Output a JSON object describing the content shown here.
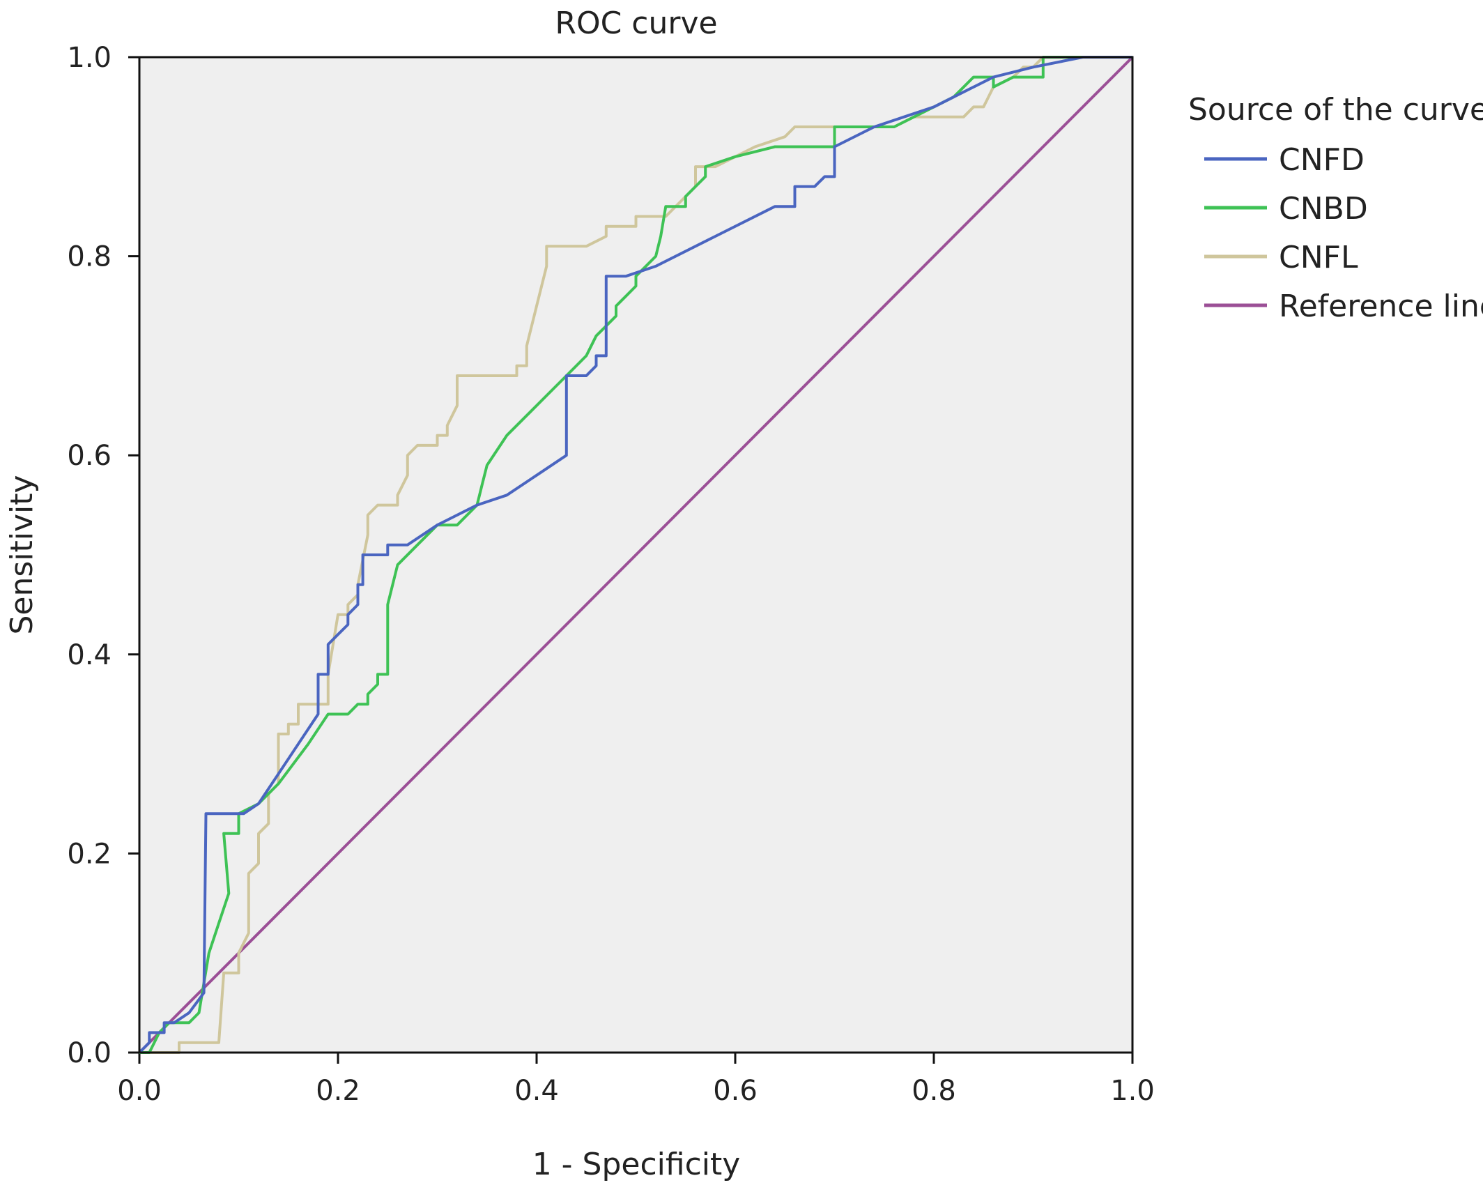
{
  "chart_data": {
    "type": "line",
    "title": "ROC curve",
    "xlabel": "1 - Specificity",
    "ylabel": "Sensitivity",
    "xlim": [
      0,
      1
    ],
    "ylim": [
      0,
      1
    ],
    "x_ticks": [
      "0.0",
      "0.2",
      "0.4",
      "0.6",
      "0.8",
      "1.0"
    ],
    "y_ticks": [
      "0.0",
      "0.2",
      "0.4",
      "0.6",
      "0.8",
      "1.0"
    ],
    "grid": false,
    "plot_background": "#efefef",
    "legend": {
      "title": "Source of the curve",
      "position": "right"
    },
    "series": [
      {
        "name": "CNFD",
        "color": "#4a65c0",
        "points": [
          [
            0,
            0
          ],
          [
            0.01,
            0.01
          ],
          [
            0.01,
            0.02
          ],
          [
            0.02,
            0.02
          ],
          [
            0.025,
            0.02
          ],
          [
            0.025,
            0.03
          ],
          [
            0.035,
            0.03
          ],
          [
            0.05,
            0.04
          ],
          [
            0.065,
            0.06
          ],
          [
            0.067,
            0.24
          ],
          [
            0.1,
            0.24
          ],
          [
            0.105,
            0.24
          ],
          [
            0.12,
            0.25
          ],
          [
            0.14,
            0.28
          ],
          [
            0.16,
            0.31
          ],
          [
            0.18,
            0.34
          ],
          [
            0.18,
            0.38
          ],
          [
            0.19,
            0.38
          ],
          [
            0.19,
            0.41
          ],
          [
            0.2,
            0.42
          ],
          [
            0.21,
            0.43
          ],
          [
            0.21,
            0.44
          ],
          [
            0.22,
            0.45
          ],
          [
            0.22,
            0.47
          ],
          [
            0.225,
            0.47
          ],
          [
            0.225,
            0.5
          ],
          [
            0.24,
            0.5
          ],
          [
            0.25,
            0.5
          ],
          [
            0.25,
            0.51
          ],
          [
            0.27,
            0.51
          ],
          [
            0.3,
            0.53
          ],
          [
            0.34,
            0.55
          ],
          [
            0.37,
            0.56
          ],
          [
            0.4,
            0.58
          ],
          [
            0.43,
            0.6
          ],
          [
            0.43,
            0.68
          ],
          [
            0.45,
            0.68
          ],
          [
            0.46,
            0.69
          ],
          [
            0.46,
            0.7
          ],
          [
            0.47,
            0.7
          ],
          [
            0.47,
            0.78
          ],
          [
            0.49,
            0.78
          ],
          [
            0.52,
            0.79
          ],
          [
            0.58,
            0.82
          ],
          [
            0.64,
            0.85
          ],
          [
            0.66,
            0.85
          ],
          [
            0.66,
            0.87
          ],
          [
            0.68,
            0.87
          ],
          [
            0.69,
            0.88
          ],
          [
            0.7,
            0.88
          ],
          [
            0.7,
            0.91
          ],
          [
            0.74,
            0.93
          ],
          [
            0.77,
            0.94
          ],
          [
            0.8,
            0.95
          ],
          [
            0.84,
            0.97
          ],
          [
            0.86,
            0.98
          ],
          [
            0.9,
            0.99
          ],
          [
            0.95,
            1.0
          ],
          [
            1,
            1
          ]
        ]
      },
      {
        "name": "CNBD",
        "color": "#3ec255",
        "points": [
          [
            0,
            0
          ],
          [
            0.01,
            0.0
          ],
          [
            0.02,
            0.02
          ],
          [
            0.03,
            0.03
          ],
          [
            0.05,
            0.03
          ],
          [
            0.06,
            0.04
          ],
          [
            0.07,
            0.1
          ],
          [
            0.08,
            0.13
          ],
          [
            0.09,
            0.16
          ],
          [
            0.085,
            0.22
          ],
          [
            0.1,
            0.22
          ],
          [
            0.1,
            0.24
          ],
          [
            0.12,
            0.25
          ],
          [
            0.14,
            0.27
          ],
          [
            0.17,
            0.31
          ],
          [
            0.19,
            0.34
          ],
          [
            0.21,
            0.34
          ],
          [
            0.22,
            0.35
          ],
          [
            0.23,
            0.35
          ],
          [
            0.23,
            0.36
          ],
          [
            0.24,
            0.37
          ],
          [
            0.24,
            0.38
          ],
          [
            0.25,
            0.38
          ],
          [
            0.25,
            0.45
          ],
          [
            0.26,
            0.49
          ],
          [
            0.28,
            0.51
          ],
          [
            0.3,
            0.53
          ],
          [
            0.32,
            0.53
          ],
          [
            0.34,
            0.55
          ],
          [
            0.345,
            0.57
          ],
          [
            0.35,
            0.59
          ],
          [
            0.37,
            0.62
          ],
          [
            0.39,
            0.64
          ],
          [
            0.41,
            0.66
          ],
          [
            0.43,
            0.68
          ],
          [
            0.45,
            0.7
          ],
          [
            0.46,
            0.72
          ],
          [
            0.47,
            0.73
          ],
          [
            0.48,
            0.74
          ],
          [
            0.48,
            0.75
          ],
          [
            0.49,
            0.76
          ],
          [
            0.5,
            0.77
          ],
          [
            0.5,
            0.78
          ],
          [
            0.51,
            0.79
          ],
          [
            0.52,
            0.8
          ],
          [
            0.525,
            0.82
          ],
          [
            0.53,
            0.85
          ],
          [
            0.55,
            0.85
          ],
          [
            0.55,
            0.86
          ],
          [
            0.56,
            0.87
          ],
          [
            0.57,
            0.88
          ],
          [
            0.57,
            0.89
          ],
          [
            0.6,
            0.9
          ],
          [
            0.64,
            0.91
          ],
          [
            0.7,
            0.91
          ],
          [
            0.7,
            0.93
          ],
          [
            0.73,
            0.93
          ],
          [
            0.76,
            0.93
          ],
          [
            0.8,
            0.95
          ],
          [
            0.82,
            0.96
          ],
          [
            0.84,
            0.98
          ],
          [
            0.86,
            0.98
          ],
          [
            0.86,
            0.97
          ],
          [
            0.88,
            0.98
          ],
          [
            0.9,
            0.98
          ],
          [
            0.91,
            0.98
          ],
          [
            0.91,
            1.0
          ],
          [
            0.93,
            1.0
          ],
          [
            1,
            1
          ]
        ]
      },
      {
        "name": "CNFL",
        "color": "#cfc69c",
        "points": [
          [
            0,
            0
          ],
          [
            0.04,
            0.0
          ],
          [
            0.04,
            0.01
          ],
          [
            0.08,
            0.01
          ],
          [
            0.085,
            0.08
          ],
          [
            0.1,
            0.08
          ],
          [
            0.1,
            0.1
          ],
          [
            0.11,
            0.12
          ],
          [
            0.11,
            0.18
          ],
          [
            0.12,
            0.19
          ],
          [
            0.12,
            0.22
          ],
          [
            0.13,
            0.23
          ],
          [
            0.13,
            0.26
          ],
          [
            0.14,
            0.27
          ],
          [
            0.14,
            0.32
          ],
          [
            0.15,
            0.32
          ],
          [
            0.15,
            0.33
          ],
          [
            0.16,
            0.33
          ],
          [
            0.16,
            0.35
          ],
          [
            0.19,
            0.35
          ],
          [
            0.19,
            0.38
          ],
          [
            0.2,
            0.44
          ],
          [
            0.21,
            0.44
          ],
          [
            0.21,
            0.45
          ],
          [
            0.22,
            0.46
          ],
          [
            0.22,
            0.47
          ],
          [
            0.23,
            0.52
          ],
          [
            0.23,
            0.54
          ],
          [
            0.24,
            0.55
          ],
          [
            0.26,
            0.55
          ],
          [
            0.26,
            0.56
          ],
          [
            0.27,
            0.58
          ],
          [
            0.27,
            0.6
          ],
          [
            0.28,
            0.61
          ],
          [
            0.3,
            0.61
          ],
          [
            0.3,
            0.62
          ],
          [
            0.31,
            0.62
          ],
          [
            0.31,
            0.63
          ],
          [
            0.32,
            0.65
          ],
          [
            0.32,
            0.68
          ],
          [
            0.38,
            0.68
          ],
          [
            0.38,
            0.69
          ],
          [
            0.39,
            0.69
          ],
          [
            0.39,
            0.71
          ],
          [
            0.4,
            0.75
          ],
          [
            0.41,
            0.79
          ],
          [
            0.41,
            0.81
          ],
          [
            0.45,
            0.81
          ],
          [
            0.47,
            0.82
          ],
          [
            0.47,
            0.83
          ],
          [
            0.5,
            0.83
          ],
          [
            0.5,
            0.84
          ],
          [
            0.53,
            0.84
          ],
          [
            0.55,
            0.86
          ],
          [
            0.56,
            0.87
          ],
          [
            0.56,
            0.89
          ],
          [
            0.58,
            0.89
          ],
          [
            0.6,
            0.9
          ],
          [
            0.62,
            0.91
          ],
          [
            0.65,
            0.92
          ],
          [
            0.66,
            0.93
          ],
          [
            0.76,
            0.93
          ],
          [
            0.78,
            0.94
          ],
          [
            0.83,
            0.94
          ],
          [
            0.84,
            0.95
          ],
          [
            0.85,
            0.95
          ],
          [
            0.86,
            0.97
          ],
          [
            0.88,
            0.98
          ],
          [
            0.89,
            0.99
          ],
          [
            0.9,
            0.99
          ],
          [
            0.91,
            1.0
          ],
          [
            1,
            1
          ]
        ]
      },
      {
        "name": "Reference line",
        "color": "#9b4f96",
        "points": [
          [
            0,
            0
          ],
          [
            1,
            1
          ]
        ]
      }
    ]
  }
}
